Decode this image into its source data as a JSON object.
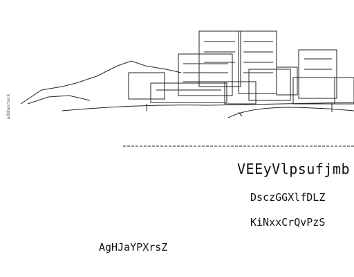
{
  "heading": "VEEyVlpsufjmb",
  "lines": [
    "DsczGGXlfDLZ",
    "KiNxxCrQvPzS"
  ],
  "footer": "AgHJaYPXrsZ"
}
